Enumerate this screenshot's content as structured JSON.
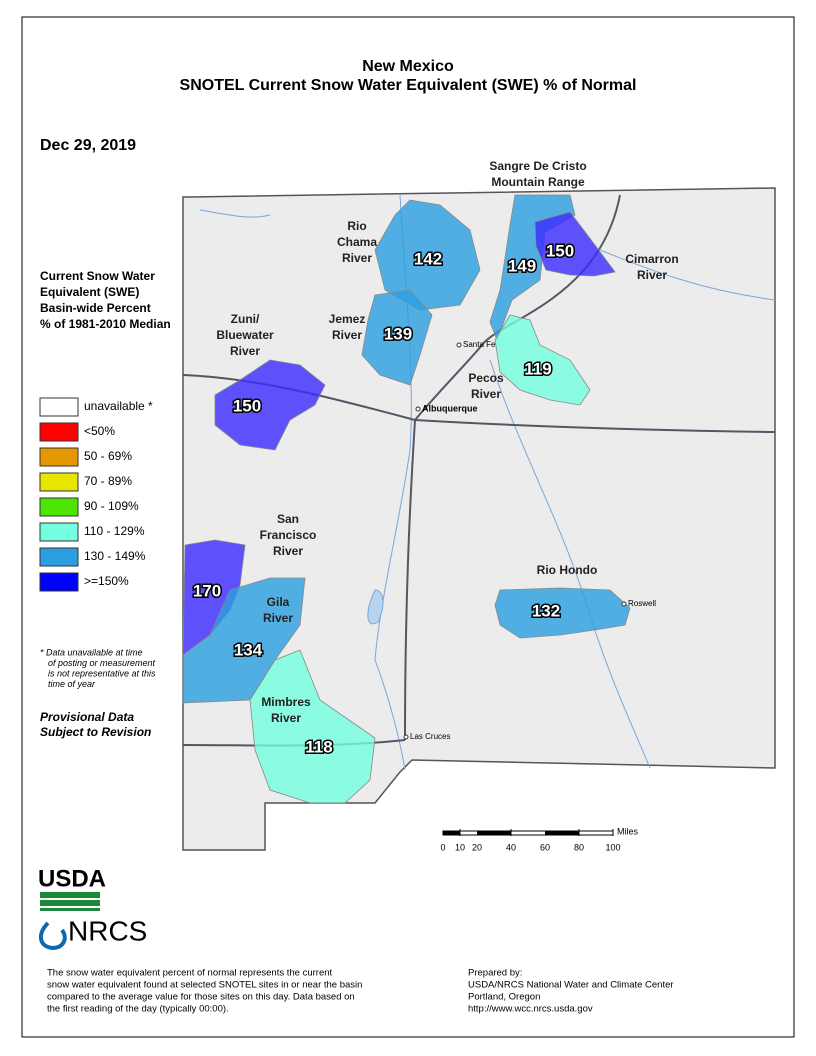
{
  "title": [
    "New Mexico",
    "SNOTEL Current Snow Water Equivalent (SWE) % of Normal"
  ],
  "date": "Dec 29, 2019",
  "legend": {
    "title": [
      "Current Snow Water",
      "Equivalent (SWE)",
      "Basin-wide Percent",
      "% of 1981-2010 Median"
    ],
    "items": [
      {
        "label": "unavailable *",
        "color": "#ffffff"
      },
      {
        "label": "<50%",
        "color": "#ff0000"
      },
      {
        "label": "50 - 69%",
        "color": "#e69800"
      },
      {
        "label": "70 - 89%",
        "color": "#e6e600"
      },
      {
        "label": "90 - 109%",
        "color": "#4ce600"
      },
      {
        "label": "110 - 129%",
        "color": "#73ffdf"
      },
      {
        "label": "130 - 149%",
        "color": "#2b9fe0"
      },
      {
        "label": ">=150%",
        "color": "#0000ff"
      }
    ]
  },
  "footnote": [
    "*  Data unavailable at time",
    "of posting or measurement",
    "is not representative at this",
    "time of year"
  ],
  "provisional": [
    "Provisional Data",
    "Subject to Revision"
  ],
  "basins": [
    {
      "name": [
        "Sangre De Cristo",
        "Mountain Range"
      ],
      "values": [
        149,
        150
      ]
    },
    {
      "name": [
        "Rio",
        "Chama",
        "River"
      ],
      "values": [
        142
      ]
    },
    {
      "name": [
        "Cimarron",
        "River"
      ]
    },
    {
      "name": [
        "Jemez",
        "River"
      ],
      "values": [
        139
      ]
    },
    {
      "name": [
        "Zuni/",
        "Bluewater",
        "River"
      ],
      "values": [
        150
      ]
    },
    {
      "name": [
        "Pecos",
        "River"
      ],
      "values": [
        119
      ]
    },
    {
      "name": [
        "San",
        "Francisco",
        "River"
      ],
      "values": [
        170
      ]
    },
    {
      "name": [
        "Gila",
        "River"
      ],
      "values": [
        134
      ]
    },
    {
      "name": [
        "Mimbres",
        "River"
      ],
      "values": [
        118
      ]
    },
    {
      "name": [
        "Rio Hondo"
      ],
      "values": [
        132
      ]
    }
  ],
  "cities": [
    "Santa Fe",
    "Albuquerque",
    "Las Cruces",
    "Roswell"
  ],
  "scale": {
    "ticks": [
      0,
      10,
      20,
      40,
      60,
      80,
      100
    ],
    "unit": "Miles"
  },
  "logos": [
    "USDA",
    "NRCS"
  ],
  "description": [
    "The snow water equivalent percent of normal represents the current",
    "snow water equivalent found at selected SNOTEL sites in or near the basin",
    "compared to the average value for those sites on this day. Data based on",
    "the first reading of the day (typically 00:00)."
  ],
  "prepared": [
    "Prepared by:",
    "USDA/NRCS National Water and Climate Center",
    "Portland, Oregon",
    "http://www.wcc.nrcs.usda.gov"
  ]
}
